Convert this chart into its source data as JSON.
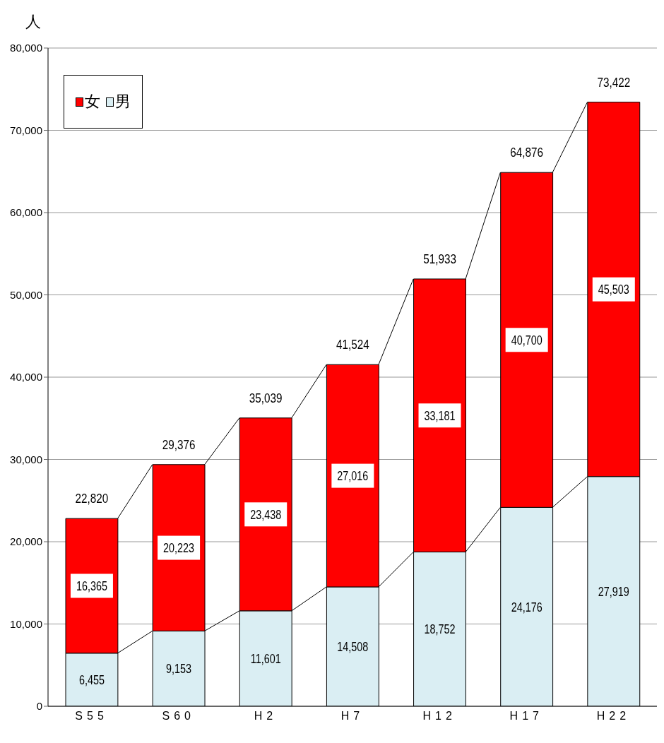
{
  "chart_data": {
    "type": "bar",
    "stacked": true,
    "ylabel": "人",
    "categories": [
      "S55",
      "S60",
      "H2",
      "H7",
      "H12",
      "H17",
      "H22"
    ],
    "series": [
      {
        "name": "男",
        "color": "#daeef3",
        "values": [
          6455,
          9153,
          11601,
          14508,
          18752,
          24176,
          27919
        ],
        "value_labels": [
          "6,455",
          "9,153",
          "11,601",
          "14,508",
          "18,752",
          "24,176",
          "27,919"
        ]
      },
      {
        "name": "女",
        "color": "#ff0000",
        "values": [
          16365,
          20223,
          23438,
          27016,
          33181,
          40700,
          45503
        ],
        "value_labels": [
          "16,365",
          "20,223",
          "23,438",
          "27,016",
          "33,181",
          "40,700",
          "45,503"
        ]
      }
    ],
    "totals": [
      "22,820",
      "29,376",
      "35,039",
      "41,524",
      "51,933",
      "64,876",
      "73,422"
    ],
    "ylim": [
      0,
      80000
    ],
    "yticks": [
      0,
      {
        "value": 10000,
        "label": "10,000"
      },
      {
        "value": 20000,
        "label": "20,000"
      },
      {
        "value": 30000,
        "label": "30,000"
      },
      {
        "value": 40000,
        "label": "40,000"
      },
      {
        "value": 50000,
        "label": "50,000"
      },
      {
        "value": 60000,
        "label": "60,000"
      },
      {
        "value": 70000,
        "label": "70,000"
      },
      {
        "value": 80000,
        "label": "80,000"
      }
    ],
    "grid": "y",
    "legend": "top left"
  }
}
